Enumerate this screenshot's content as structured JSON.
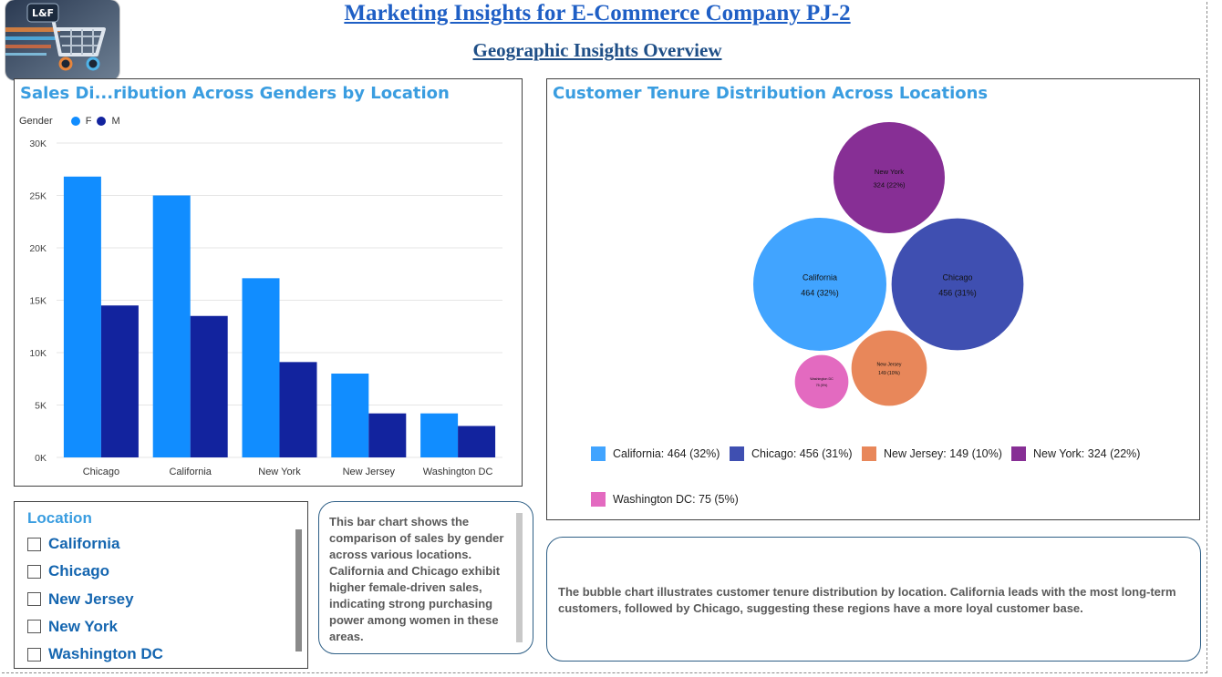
{
  "header": {
    "title": "Marketing Insights for E-Commerce Company PJ-2",
    "subtitle": "Geographic Insights Overview",
    "logo_text": "L&F"
  },
  "bar_panel": {
    "title": "Sales Di...ribution Across Genders by Location",
    "legend_title": "Gender"
  },
  "bubble_panel": {
    "title": "Customer Tenure Distribution Across Locations"
  },
  "slicer": {
    "title": "Location",
    "items": [
      "California",
      "Chicago",
      "New Jersey",
      "New York",
      "Washington DC"
    ]
  },
  "bar_note": "This bar chart shows the comparison of sales by gender across various locations. California and Chicago exhibit higher female-driven sales, indicating strong purchasing power among women in these areas.",
  "bubble_note": "The bubble chart illustrates customer tenure distribution by location. California leads with the most long-term customers, followed by Chicago, suggesting these regions have a more loyal customer base.",
  "colors": {
    "female": "#118dff",
    "male": "#12239e",
    "title_blue": "#3a9de0",
    "california": "#41a4ff",
    "chicago": "#3f4fb1",
    "new_jersey": "#e8875a",
    "new_york": "#872f95",
    "washington_dc": "#e36ac0"
  },
  "chart_data": [
    {
      "type": "bar",
      "categories": [
        "Chicago",
        "California",
        "New York",
        "New Jersey",
        "Washington DC"
      ],
      "series": [
        {
          "name": "F",
          "color": "#118dff",
          "values": [
            26800,
            25000,
            17100,
            8000,
            4200
          ]
        },
        {
          "name": "M",
          "color": "#12239e",
          "values": [
            14500,
            13500,
            9100,
            4200,
            3000
          ]
        }
      ],
      "yticks": [
        "0K",
        "5K",
        "10K",
        "15K",
        "20K",
        "25K",
        "30K"
      ],
      "ylim": [
        0,
        30000
      ],
      "grid": true,
      "legend_position": "top-left"
    },
    {
      "type": "bubble",
      "labels": [
        "California",
        "Chicago",
        "New Jersey",
        "New York",
        "Washington DC"
      ],
      "values": [
        464,
        456,
        149,
        324,
        75
      ],
      "percent": [
        "32%",
        "31%",
        "10%",
        "22%",
        "5%"
      ],
      "bubble_labels": [
        "464 (32%)",
        "456 (31%)",
        "149 (10%)",
        "324 (22%)",
        "75 (5%)"
      ],
      "colors": [
        "#41a4ff",
        "#3f4fb1",
        "#e8875a",
        "#872f95",
        "#e36ac0"
      ],
      "legend": [
        "California: 464 (32%)",
        "Chicago: 456 (31%)",
        "New Jersey: 149 (10%)",
        "New York: 324 (22%)",
        "Washington DC: 75 (5%)"
      ],
      "legend_position": "bottom"
    }
  ]
}
